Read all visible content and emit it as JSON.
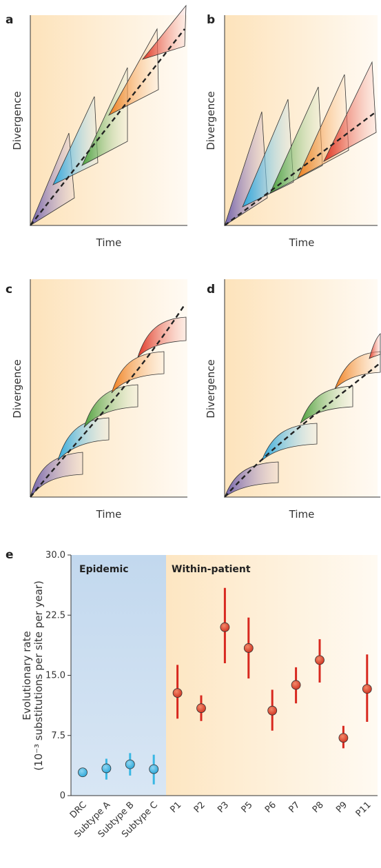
{
  "panels": [
    {
      "letter": "a",
      "xlabel": "Time",
      "ylabel": "Divergence"
    },
    {
      "letter": "b",
      "xlabel": "Time",
      "ylabel": "Divergence"
    },
    {
      "letter": "c",
      "xlabel": "Time",
      "ylabel": "Divergence"
    },
    {
      "letter": "d",
      "xlabel": "Time",
      "ylabel": "Divergence"
    }
  ],
  "chart_data": {
    "letter": "e",
    "type": "scatter",
    "ylabel_line1": "Evolutionary rate",
    "ylabel_line2": "(10⁻³ substitutions per site per year)",
    "ylim": [
      0,
      30
    ],
    "yticks": [
      "0",
      "7.5",
      "15.0",
      "22.5",
      "30.0"
    ],
    "group_labels": [
      "Epidemic",
      "Within-patient"
    ],
    "categories": [
      "DRC",
      "Subtype A",
      "Subtype B",
      "Subtype C",
      "P1",
      "P2",
      "P3",
      "P5",
      "P6",
      "P7",
      "P8",
      "P9",
      "P11"
    ],
    "series": [
      {
        "group": "Epidemic",
        "color": "#39b7e3",
        "points": [
          {
            "x": "DRC",
            "y": 2.9,
            "low": 2.9,
            "high": 2.9
          },
          {
            "x": "Subtype A",
            "y": 3.4,
            "low": 2.0,
            "high": 4.6
          },
          {
            "x": "Subtype B",
            "y": 3.9,
            "low": 2.5,
            "high": 5.3
          },
          {
            "x": "Subtype C",
            "y": 3.3,
            "low": 1.4,
            "high": 5.1
          }
        ]
      },
      {
        "group": "Within-patient",
        "color": "#d8281f",
        "points": [
          {
            "x": "P1",
            "y": 12.8,
            "low": 9.6,
            "high": 16.3
          },
          {
            "x": "P2",
            "y": 10.9,
            "low": 9.3,
            "high": 12.5
          },
          {
            "x": "P3",
            "y": 21.0,
            "low": 16.5,
            "high": 25.9
          },
          {
            "x": "P5",
            "y": 18.4,
            "low": 14.6,
            "high": 22.2
          },
          {
            "x": "P6",
            "y": 10.6,
            "low": 8.1,
            "high": 13.2
          },
          {
            "x": "P7",
            "y": 13.8,
            "low": 11.5,
            "high": 16.0
          },
          {
            "x": "P8",
            "y": 16.9,
            "low": 14.1,
            "high": 19.5
          },
          {
            "x": "P9",
            "y": 7.2,
            "low": 5.9,
            "high": 8.7
          },
          {
            "x": "P11",
            "y": 13.3,
            "low": 9.2,
            "high": 17.6
          }
        ]
      }
    ]
  },
  "colors": {
    "purple": "#7b6bb0",
    "blue": "#3ab2df",
    "green": "#5aa845",
    "orange": "#f28a2c",
    "red": "#e03a27",
    "epidemic_bg": "#c8dbee",
    "patient_bg": "#fde7c4"
  }
}
